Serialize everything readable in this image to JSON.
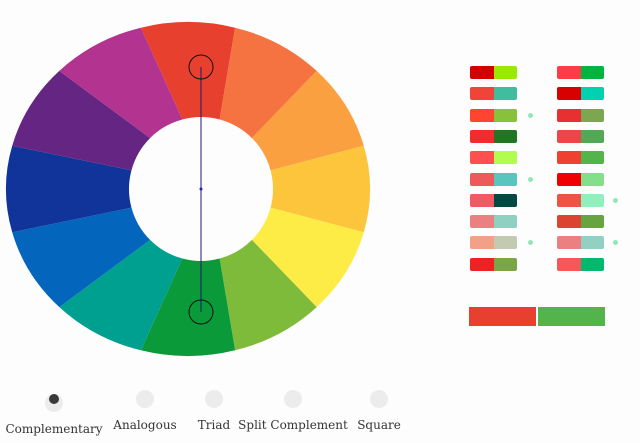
{
  "wheel": {
    "colors": [
      "#e8402f",
      "#f57340",
      "#fba040",
      "#fdc53c",
      "#fdec46",
      "#7fbb3a",
      "#0a9a3a",
      "#00a091",
      "#0366bc",
      "#10349a",
      "#652582",
      "#b23490"
    ],
    "selected": [
      "#e8402f",
      "#0a9a3a"
    ]
  },
  "palettes": {
    "left": [
      [
        "#d20000",
        "#98ea00"
      ],
      [
        "#f04438",
        "#40bc9e"
      ],
      [
        "#ff4430",
        "#88c23a"
      ],
      [
        "#f02c2c",
        "#227622"
      ],
      [
        "#ff5050",
        "#b2fc50"
      ],
      [
        "#ee5a5a",
        "#58c6be"
      ],
      [
        "#f05a62",
        "#004a42"
      ],
      [
        "#ec8080",
        "#8ed0c2"
      ],
      [
        "#f2a086",
        "#c2cab2"
      ],
      [
        "#ee2222",
        "#7aa648"
      ]
    ],
    "right": [
      [
        "#ff3c46",
        "#00b43e"
      ],
      [
        "#d80000",
        "#00d2b0"
      ],
      [
        "#e83030",
        "#7ca650"
      ],
      [
        "#ec4646",
        "#52a854"
      ],
      [
        "#f04030",
        "#52b44a"
      ],
      [
        "#f00000",
        "#82e08a"
      ],
      [
        "#ec5444",
        "#90f0bc"
      ],
      [
        "#dc4432",
        "#66a440"
      ],
      [
        "#ec8080",
        "#92d0c4"
      ],
      [
        "#f65858",
        "#00b96c"
      ]
    ],
    "left_dots": [
      2,
      5,
      8
    ],
    "right_dots": [
      6,
      8
    ]
  },
  "result": [
    "#e8402f",
    "#52b44a"
  ],
  "modes": [
    {
      "label": "Complementary",
      "selected": true
    },
    {
      "label": "Analogous",
      "selected": false
    },
    {
      "label": "Triad",
      "selected": false
    },
    {
      "label": "Split  Complement",
      "selected": false
    },
    {
      "label": "Square",
      "selected": false
    }
  ]
}
